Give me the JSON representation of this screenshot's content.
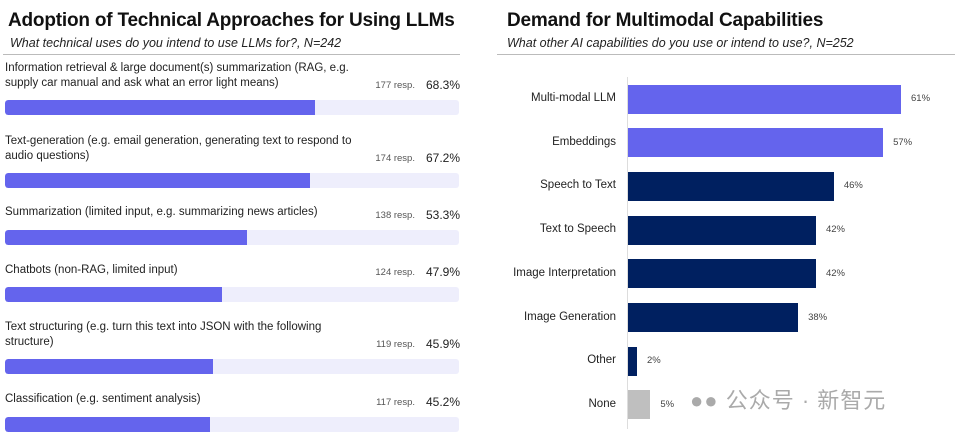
{
  "chart_data": [
    {
      "type": "bar",
      "orientation": "horizontal",
      "title": "Adoption of Technical Approaches for Using LLMs",
      "subtitle": "What technical uses do you intend to use LLMs for?, N=242",
      "xlim": [
        0,
        100
      ],
      "colors": {
        "fill": "#6464ed",
        "track": "#eeeefc"
      },
      "categories": [
        "Information retrieval & large document(s) summarization (RAG, e.g. supply car manual and ask what an error light means)",
        "Text-generation (e.g. email generation, generating text to respond to audio questions)",
        "Summarization (limited input, e.g. summarizing news articles)",
        "Chatbots (non-RAG, limited input)",
        "Text structuring (e.g. turn this text into JSON with the following structure)",
        "Classification (e.g. sentiment analysis)"
      ],
      "responses": [
        "177 resp.",
        "174 resp.",
        "138 resp.",
        "124 resp.",
        "119 resp.",
        "117 resp."
      ],
      "value_labels": [
        "68.3%",
        "67.2%",
        "53.3%",
        "47.9%",
        "45.9%",
        "45.2%"
      ],
      "values": [
        68.3,
        67.2,
        53.3,
        47.9,
        45.9,
        45.2
      ]
    },
    {
      "type": "bar",
      "orientation": "horizontal",
      "title": "Demand for Multimodal Capabilities",
      "subtitle": "What other AI capabilities do you use or intend to use?, N=252",
      "xlim": [
        0,
        65
      ],
      "categories": [
        "Multi-modal LLM",
        "Embeddings",
        "Speech to Text",
        "Text to Speech",
        "Image Interpretation",
        "Image Generation",
        "Other",
        "None"
      ],
      "values": [
        61,
        57,
        46,
        42,
        42,
        38,
        2,
        5
      ],
      "value_labels": [
        "61%",
        "57%",
        "46%",
        "42%",
        "42%",
        "38%",
        "2%",
        "5%"
      ],
      "colors": [
        "#6464ed",
        "#6464ed",
        "#002060",
        "#002060",
        "#002060",
        "#002060",
        "#002060",
        "#bfbfbf"
      ]
    }
  ],
  "watermark": "公众号 · 新智元"
}
